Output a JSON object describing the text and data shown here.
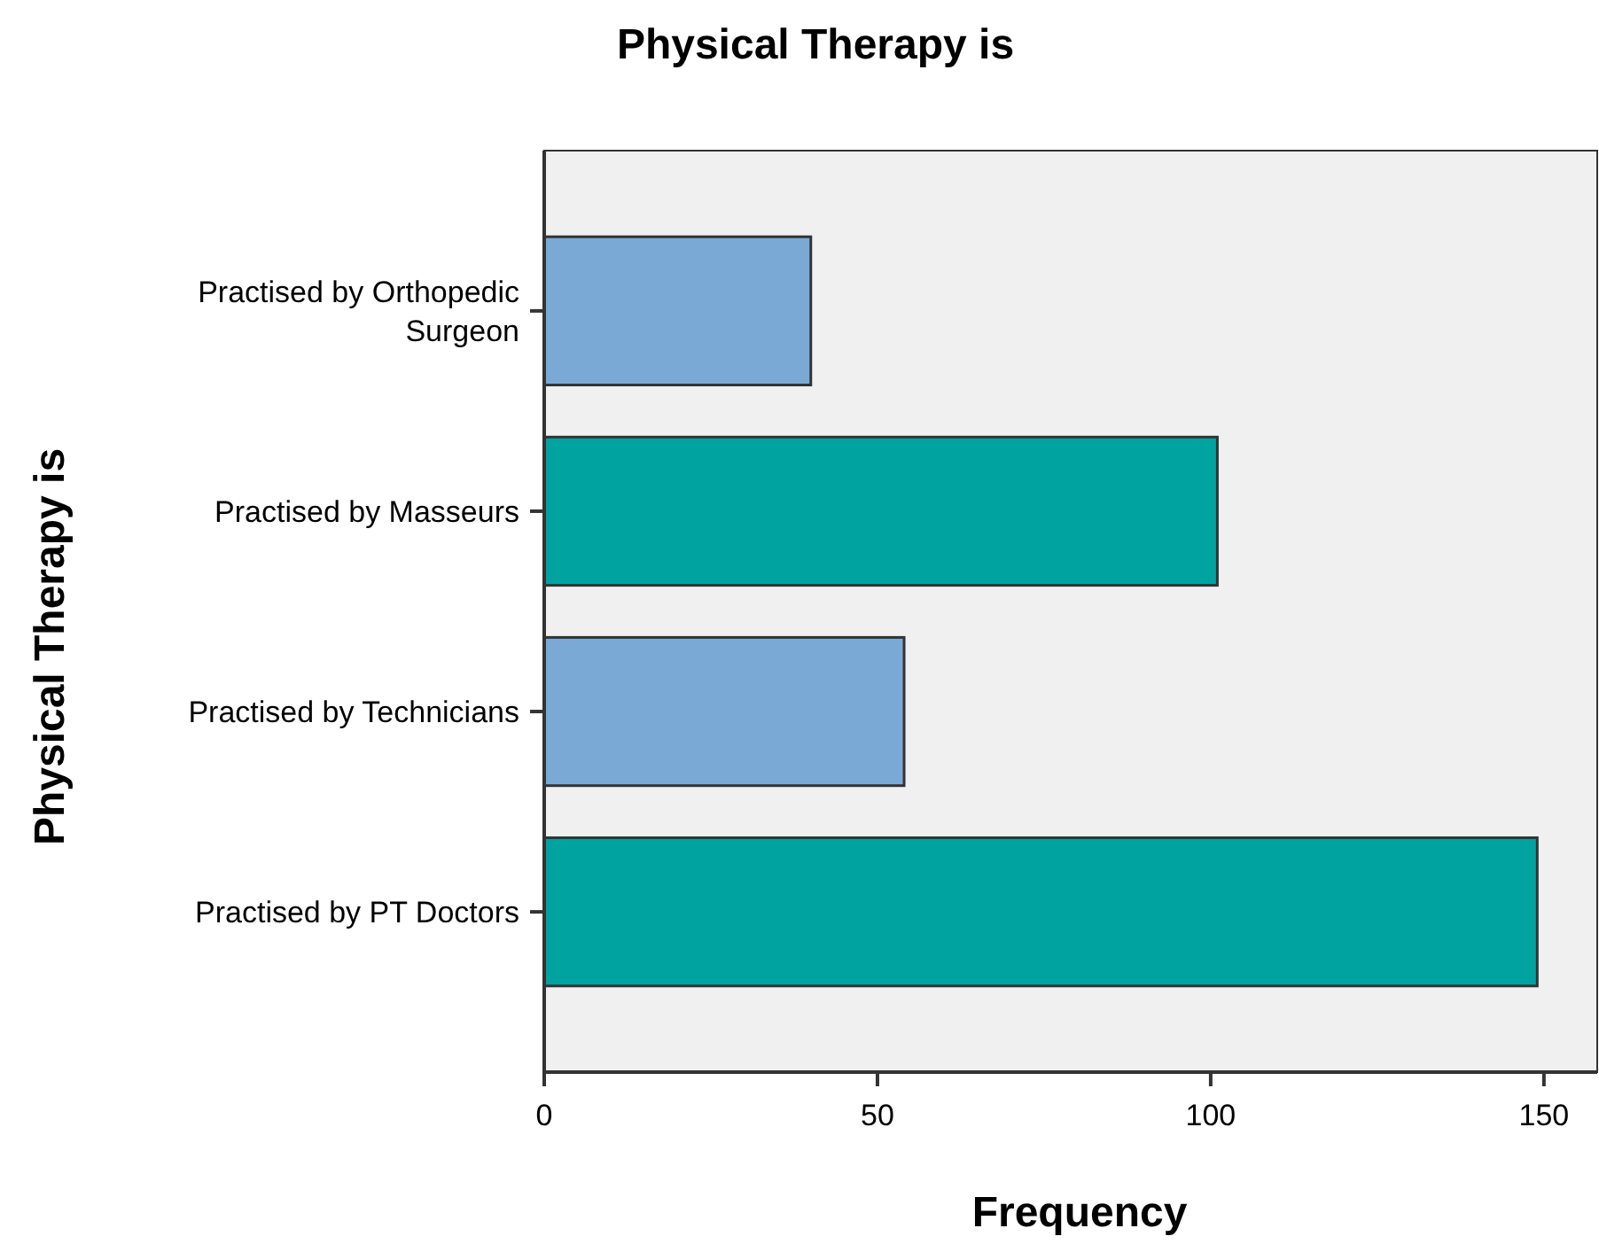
{
  "chart_data": {
    "type": "bar",
    "orientation": "horizontal",
    "title": "Physical Therapy is",
    "xlabel": "Frequency",
    "ylabel": "Physical Therapy is",
    "categories": [
      "Practised by Orthopedic Surgeon",
      "Practised by Masseurs",
      "Practised by Technicians",
      "Practised by PT Doctors"
    ],
    "values": [
      40,
      101,
      54,
      149
    ],
    "colors": [
      "#7ba9d6",
      "#00a39f",
      "#7ba9d6",
      "#00a39f"
    ],
    "xlim": [
      0,
      158
    ],
    "xticks": [
      0,
      50,
      100,
      150
    ],
    "grid": false
  }
}
